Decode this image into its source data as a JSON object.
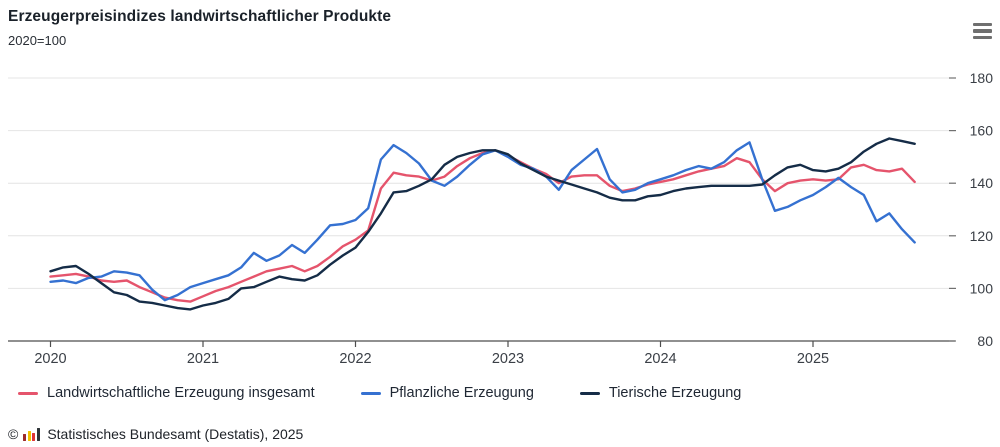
{
  "header": {
    "title": "Erzeugerpreisindizes landwirtschaftlicher Produkte",
    "subtitle": "2020=100"
  },
  "menu": {
    "icon": "hamburger-icon"
  },
  "chart_data": {
    "type": "line",
    "title": "Erzeugerpreisindizes landwirtschaftlicher Produkte",
    "unit_label": "2020=100",
    "x_start": "2020-01",
    "x_end": "2025-09",
    "x_tick_years": [
      "2020",
      "2021",
      "2022",
      "2023",
      "2024",
      "2025"
    ],
    "yticks": [
      80,
      100,
      120,
      140,
      160,
      180
    ],
    "ylim": [
      80,
      185
    ],
    "grid": true,
    "legend_position": "bottom",
    "series": [
      {
        "name": "Landwirtschaftliche Erzeugung insgesamt",
        "color": "#e5546c",
        "values": [
          104.5,
          105.0,
          105.5,
          104.5,
          103.0,
          102.5,
          103.0,
          100.5,
          98.5,
          96.5,
          95.5,
          95.0,
          97.0,
          99.0,
          100.5,
          102.5,
          104.5,
          106.5,
          107.5,
          108.5,
          106.5,
          108.5,
          112.0,
          116.0,
          118.5,
          122.0,
          138.0,
          144.0,
          143.0,
          142.5,
          141.0,
          142.5,
          146.5,
          149.5,
          151.5,
          152.5,
          150.5,
          148.0,
          145.5,
          143.5,
          140.0,
          142.5,
          143.0,
          143.0,
          139.0,
          137.0,
          138.0,
          139.5,
          140.5,
          141.5,
          143.0,
          144.5,
          145.5,
          146.5,
          149.5,
          148.0,
          141.5,
          137.0,
          140.0,
          141.0,
          141.5,
          141.0,
          141.5,
          146.0,
          147.0,
          145.0,
          144.5,
          145.5,
          140.5
        ]
      },
      {
        "name": "Pflanzliche Erzeugung",
        "color": "#3571d1",
        "values": [
          102.5,
          103.0,
          102.0,
          104.0,
          104.5,
          106.5,
          106.0,
          105.0,
          99.5,
          95.5,
          97.5,
          100.5,
          102.0,
          103.5,
          105.0,
          108.0,
          113.5,
          110.5,
          112.5,
          116.5,
          113.5,
          118.5,
          124.0,
          124.5,
          126.0,
          130.5,
          149.0,
          154.5,
          151.5,
          147.5,
          141.0,
          139.0,
          142.5,
          147.0,
          151.0,
          152.5,
          150.0,
          147.0,
          145.5,
          142.5,
          137.5,
          145.0,
          149.0,
          153.0,
          141.5,
          136.5,
          137.5,
          140.0,
          141.5,
          143.0,
          145.0,
          146.5,
          145.5,
          148.0,
          152.5,
          155.5,
          141.5,
          129.5,
          131.0,
          133.5,
          135.5,
          138.5,
          142.0,
          138.5,
          135.5,
          125.5,
          128.5,
          122.5,
          117.5
        ]
      },
      {
        "name": "Tierische Erzeugung",
        "color": "#152c47",
        "values": [
          106.5,
          108.0,
          108.5,
          105.5,
          102.0,
          98.5,
          97.5,
          95.0,
          94.5,
          93.5,
          92.5,
          92.0,
          93.5,
          94.5,
          96.0,
          100.0,
          100.5,
          102.5,
          104.5,
          103.5,
          103.0,
          105.0,
          109.0,
          112.5,
          115.5,
          121.5,
          128.5,
          136.5,
          137.0,
          139.0,
          141.5,
          147.0,
          150.0,
          151.5,
          152.5,
          152.5,
          151.0,
          147.5,
          145.0,
          142.5,
          141.0,
          139.5,
          138.0,
          136.5,
          134.5,
          133.5,
          133.5,
          135.0,
          135.5,
          137.0,
          138.0,
          138.5,
          139.0,
          139.0,
          139.0,
          139.0,
          139.5,
          143.0,
          146.0,
          147.0,
          145.0,
          144.5,
          145.5,
          148.0,
          152.0,
          155.0,
          157.0,
          156.0,
          155.0
        ]
      }
    ]
  },
  "colors": {
    "grid": "#e4e4e4",
    "axis": "#4d4d4d",
    "tick": "#707070",
    "tick_label": "#3a3f46",
    "title_text": "#1a2129"
  },
  "footer": {
    "copyright": "©",
    "text": "Statistisches Bundesamt (Destatis), 2025",
    "logo_bar_colors": [
      "#9c2b2b",
      "#f2c200",
      "#e03535",
      "#2e3438"
    ],
    "logo_bar_heights": [
      7,
      10,
      8,
      13
    ]
  }
}
